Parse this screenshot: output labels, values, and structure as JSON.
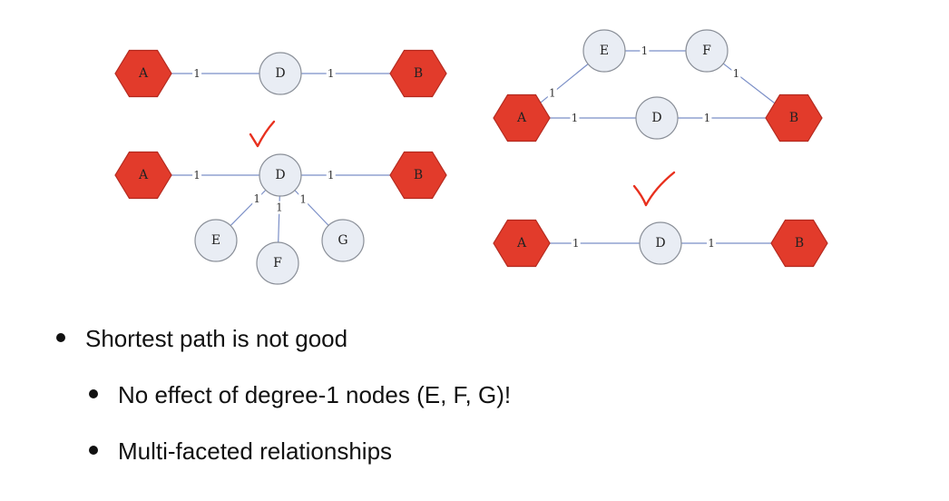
{
  "diagram": {
    "nodes": [
      {
        "id": "g1-A",
        "label": "A",
        "shape": "hex"
      },
      {
        "id": "g1-D",
        "label": "D",
        "shape": "circle"
      },
      {
        "id": "g1-B",
        "label": "B",
        "shape": "hex"
      },
      {
        "id": "g2-A",
        "label": "A",
        "shape": "hex"
      },
      {
        "id": "g2-D",
        "label": "D",
        "shape": "circle"
      },
      {
        "id": "g2-B",
        "label": "B",
        "shape": "hex"
      },
      {
        "id": "g2-E",
        "label": "E",
        "shape": "circle"
      },
      {
        "id": "g2-F",
        "label": "F",
        "shape": "circle"
      },
      {
        "id": "g2-G",
        "label": "G",
        "shape": "circle"
      },
      {
        "id": "g3-E",
        "label": "E",
        "shape": "circle"
      },
      {
        "id": "g3-F",
        "label": "F",
        "shape": "circle"
      },
      {
        "id": "g3-A",
        "label": "A",
        "shape": "hex"
      },
      {
        "id": "g3-D",
        "label": "D",
        "shape": "circle"
      },
      {
        "id": "g3-B",
        "label": "B",
        "shape": "hex"
      },
      {
        "id": "g4-A",
        "label": "A",
        "shape": "hex"
      },
      {
        "id": "g4-D",
        "label": "D",
        "shape": "circle"
      },
      {
        "id": "g4-B",
        "label": "B",
        "shape": "hex"
      }
    ],
    "edges": [
      {
        "from": "g1-A",
        "to": "g1-D",
        "weight": "1"
      },
      {
        "from": "g1-D",
        "to": "g1-B",
        "weight": "1"
      },
      {
        "from": "g2-A",
        "to": "g2-D",
        "weight": "1"
      },
      {
        "from": "g2-D",
        "to": "g2-B",
        "weight": "1"
      },
      {
        "from": "g2-D",
        "to": "g2-E",
        "weight": "1"
      },
      {
        "from": "g2-D",
        "to": "g2-F",
        "weight": "1"
      },
      {
        "from": "g2-D",
        "to": "g2-G",
        "weight": "1"
      },
      {
        "from": "g3-A",
        "to": "g3-E",
        "weight": "1"
      },
      {
        "from": "g3-E",
        "to": "g3-F",
        "weight": "1"
      },
      {
        "from": "g3-F",
        "to": "g3-B",
        "weight": "1"
      },
      {
        "from": "g3-A",
        "to": "g3-D",
        "weight": "1"
      },
      {
        "from": "g3-D",
        "to": "g3-B",
        "weight": "1"
      },
      {
        "from": "g4-A",
        "to": "g4-D",
        "weight": "1"
      },
      {
        "from": "g4-D",
        "to": "g4-B",
        "weight": "1"
      }
    ],
    "check_marks": [
      "left-graph-2",
      "right-graph-2"
    ],
    "colors": {
      "hex_fill": "#e23b2b",
      "circle_fill": "#e9edf4",
      "edge": "#7b8fc7",
      "check": "#e8301e"
    }
  },
  "bullets": {
    "main": "Shortest path is not good",
    "sub1": "No effect of degree-1 nodes (E, F, G)!",
    "sub2": "Multi-faceted relationships"
  }
}
